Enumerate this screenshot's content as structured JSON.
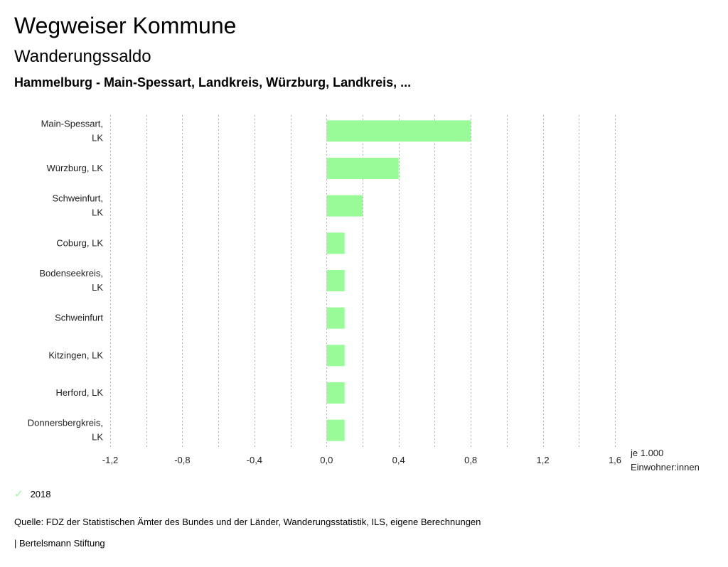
{
  "header": {
    "title": "Wegweiser Kommune",
    "subtitle": "Wanderungssaldo",
    "filter": "Hammelburg - Main-Spessart, Landkreis, Würzburg, Landkreis, ..."
  },
  "chart_data": {
    "type": "bar",
    "orientation": "horizontal",
    "categories": [
      [
        "Main-Spessart,",
        "LK"
      ],
      [
        "Würzburg, LK"
      ],
      [
        "Schweinfurt,",
        "LK"
      ],
      [
        "Coburg, LK"
      ],
      [
        "Bodenseekreis,",
        "LK"
      ],
      [
        "Schweinfurt"
      ],
      [
        "Kitzingen, LK"
      ],
      [
        "Herford, LK"
      ],
      [
        "Donnersbergkreis,",
        "LK"
      ]
    ],
    "series": [
      {
        "name": "2018",
        "color": "#98fb98",
        "values": [
          0.8,
          0.4,
          0.2,
          0.1,
          0.1,
          0.1,
          0.1,
          0.1,
          0.1
        ]
      }
    ],
    "xlim": [
      -1.2,
      1.6
    ],
    "xticks": [
      -1.2,
      -0.8,
      -0.4,
      0.0,
      0.4,
      0.8,
      1.2,
      1.6
    ],
    "xtick_labels": [
      "-1,2",
      "-0,8",
      "-0,4",
      "0,0",
      "0,4",
      "0,8",
      "1,2",
      "1,6"
    ],
    "xlabel": [
      "je 1.000",
      "Einwohner:innen"
    ],
    "grid": "vertical-dotted"
  },
  "legend": {
    "label": "2018",
    "color": "#98fb98"
  },
  "footer": {
    "source": "Quelle: FDZ der Statistischen Ämter des Bundes und der Länder, Wanderungsstatistik, ILS, eigene Berechnungen",
    "brand": "| Bertelsmann Stiftung"
  }
}
